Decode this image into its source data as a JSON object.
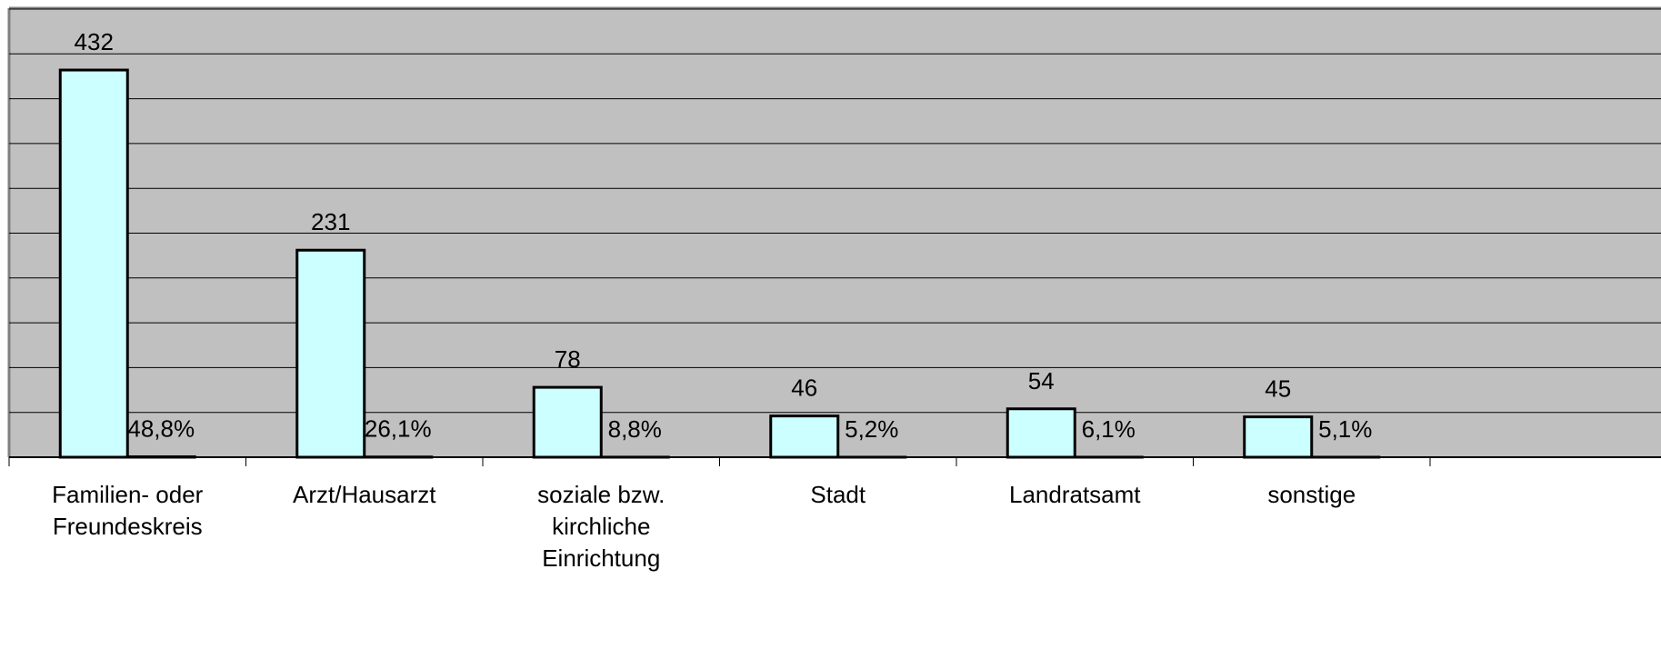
{
  "chart_data": {
    "type": "bar",
    "categories": [
      "Familien- oder Freundeskreis",
      "Arzt/Hausarzt",
      "soziale bzw. kirchliche Einrichtung",
      "Stadt",
      "Landratsamt",
      "sonstige"
    ],
    "series": [
      {
        "color": "#ccffff",
        "values": [
          432,
          231,
          78,
          46,
          54,
          45
        ]
      },
      {
        "color": "#ccffff",
        "values": [
          0.488,
          0.261,
          0.088,
          0.052,
          0.061,
          0.051
        ],
        "value_labels": [
          "48,8%",
          "26,1%",
          "8,8%",
          "5,2%",
          "6,1%",
          "5,1%"
        ]
      }
    ],
    "ylim": [
      0,
      500
    ],
    "yticks": [
      0,
      50,
      100,
      150,
      200,
      250,
      300,
      350,
      400,
      450,
      500
    ],
    "grid": true
  }
}
